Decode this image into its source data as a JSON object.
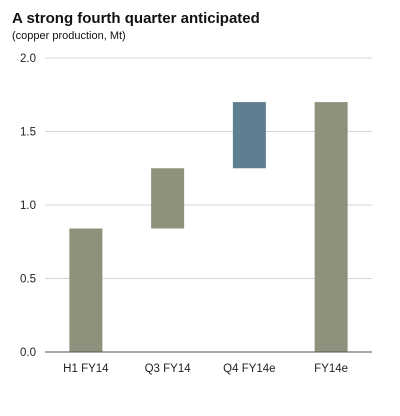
{
  "chart_data": {
    "type": "bar",
    "title": "A strong fourth quarter anticipated",
    "subtitle": "(copper production, Mt)",
    "categories": [
      "H1 FY14",
      "Q3 FY14",
      "Q4 FY14e",
      "FY14e"
    ],
    "bars": [
      {
        "category": "H1 FY14",
        "start": 0,
        "end": 0.84,
        "color": "#8f917d"
      },
      {
        "category": "Q3 FY14",
        "start": 0.84,
        "end": 1.25,
        "color": "#8f917d"
      },
      {
        "category": "Q4 FY14e",
        "start": 1.25,
        "end": 1.7,
        "color": "#5e7f91"
      },
      {
        "category": "FY14e",
        "start": 0,
        "end": 1.7,
        "color": "#8f917d"
      }
    ],
    "ylim": [
      0,
      2.0
    ],
    "yticks": [
      "0.0",
      "0.5",
      "1.0",
      "1.5",
      "2.0"
    ],
    "ytick_values": [
      0,
      0.5,
      1.0,
      1.5,
      2.0
    ],
    "grid": true,
    "style": "waterfall"
  }
}
